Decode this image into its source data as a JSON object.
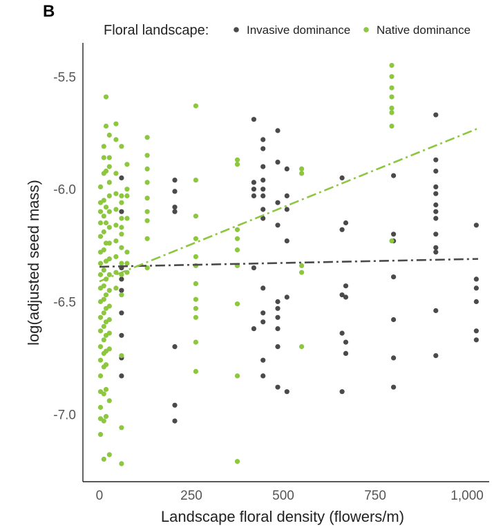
{
  "panel_label": "B",
  "legend": {
    "title": "Floral landscape:",
    "entries": [
      {
        "label": "Invasive dominance",
        "color": "#4a4a4a"
      },
      {
        "label": "Native dominance",
        "color": "#8dc63f"
      }
    ]
  },
  "chart_data": {
    "type": "scatter",
    "title": "",
    "xlabel": "Landscape floral density (flowers/m)",
    "ylabel": "log(adjusted seed mass)",
    "xlim": [
      -45,
      1060
    ],
    "ylim": [
      -7.3,
      -5.35
    ],
    "xticks": [
      0,
      250,
      500,
      750,
      1000
    ],
    "xtick_labels": [
      "0",
      "250",
      "500",
      "750",
      "1,000"
    ],
    "yticks": [
      -7.0,
      -6.5,
      -6.0,
      -5.5
    ],
    "ytick_labels": [
      "-7.0",
      "-6.5",
      "-6.0",
      "-5.5"
    ],
    "grid": false,
    "legend_position": "top",
    "series": [
      {
        "name": "Invasive dominance",
        "color": "#4a4a4a",
        "points": [
          [
            60,
            -5.95
          ],
          [
            60,
            -6.1
          ],
          [
            60,
            -6.35
          ],
          [
            60,
            -6.4
          ],
          [
            60,
            -6.45
          ],
          [
            60,
            -6.55
          ],
          [
            60,
            -6.65
          ],
          [
            60,
            -6.75
          ],
          [
            60,
            -6.83
          ],
          [
            205,
            -5.96
          ],
          [
            205,
            -6.01
          ],
          [
            205,
            -6.08
          ],
          [
            205,
            -6.1
          ],
          [
            205,
            -6.7
          ],
          [
            205,
            -6.96
          ],
          [
            205,
            -7.03
          ],
          [
            420,
            -5.69
          ],
          [
            420,
            -5.97
          ],
          [
            420,
            -6.0
          ],
          [
            420,
            -6.03
          ],
          [
            420,
            -6.35
          ],
          [
            420,
            -6.62
          ],
          [
            445,
            -5.78
          ],
          [
            445,
            -5.82
          ],
          [
            445,
            -5.9
          ],
          [
            445,
            -5.96
          ],
          [
            445,
            -6.0
          ],
          [
            445,
            -6.03
          ],
          [
            445,
            -6.09
          ],
          [
            445,
            -6.13
          ],
          [
            445,
            -6.44
          ],
          [
            445,
            -6.55
          ],
          [
            445,
            -6.59
          ],
          [
            445,
            -6.76
          ],
          [
            445,
            -6.83
          ],
          [
            485,
            -5.74
          ],
          [
            485,
            -5.88
          ],
          [
            485,
            -6.06
          ],
          [
            485,
            -6.16
          ],
          [
            485,
            -6.5
          ],
          [
            485,
            -6.53
          ],
          [
            485,
            -6.57
          ],
          [
            485,
            -6.62
          ],
          [
            485,
            -6.7
          ],
          [
            485,
            -6.88
          ],
          [
            510,
            -5.91
          ],
          [
            510,
            -6.03
          ],
          [
            510,
            -6.09
          ],
          [
            510,
            -6.23
          ],
          [
            510,
            -6.48
          ],
          [
            510,
            -6.9
          ],
          [
            660,
            -5.95
          ],
          [
            660,
            -6.18
          ],
          [
            660,
            -6.47
          ],
          [
            660,
            -6.64
          ],
          [
            660,
            -6.9
          ],
          [
            670,
            -6.15
          ],
          [
            670,
            -6.43
          ],
          [
            670,
            -6.48
          ],
          [
            670,
            -6.68
          ],
          [
            670,
            -6.73
          ],
          [
            800,
            -5.94
          ],
          [
            800,
            -6.2
          ],
          [
            800,
            -6.23
          ],
          [
            800,
            -6.39
          ],
          [
            800,
            -6.58
          ],
          [
            800,
            -6.75
          ],
          [
            800,
            -6.88
          ],
          [
            915,
            -5.67
          ],
          [
            915,
            -5.87
          ],
          [
            915,
            -5.92
          ],
          [
            915,
            -5.99
          ],
          [
            915,
            -6.02
          ],
          [
            915,
            -6.07
          ],
          [
            915,
            -6.1
          ],
          [
            915,
            -6.13
          ],
          [
            915,
            -6.2
          ],
          [
            915,
            -6.26
          ],
          [
            915,
            -6.28
          ],
          [
            915,
            -6.54
          ],
          [
            915,
            -6.74
          ],
          [
            1025,
            -6.16
          ],
          [
            1025,
            -6.4
          ],
          [
            1025,
            -6.44
          ],
          [
            1025,
            -6.5
          ],
          [
            1025,
            -6.63
          ],
          [
            1025,
            -6.67
          ]
        ],
        "trend": {
          "x": [
            0,
            1030
          ],
          "y": [
            -6.345,
            -6.31
          ]
        }
      },
      {
        "name": "Native dominance",
        "color": "#8dc63f",
        "points": [
          [
            3,
            -5.99
          ],
          [
            3,
            -6.06
          ],
          [
            3,
            -6.1
          ],
          [
            3,
            -6.15
          ],
          [
            3,
            -6.21
          ],
          [
            3,
            -6.28
          ],
          [
            3,
            -6.33
          ],
          [
            3,
            -6.38
          ],
          [
            3,
            -6.44
          ],
          [
            3,
            -6.5
          ],
          [
            3,
            -6.57
          ],
          [
            3,
            -6.63
          ],
          [
            3,
            -6.7
          ],
          [
            3,
            -6.76
          ],
          [
            3,
            -6.83
          ],
          [
            3,
            -6.9
          ],
          [
            3,
            -6.97
          ],
          [
            3,
            -7.02
          ],
          [
            3,
            -7.09
          ],
          [
            12,
            -5.81
          ],
          [
            12,
            -5.86
          ],
          [
            12,
            -5.93
          ],
          [
            12,
            -6.05
          ],
          [
            12,
            -6.12
          ],
          [
            12,
            -6.19
          ],
          [
            12,
            -6.27
          ],
          [
            12,
            -6.36
          ],
          [
            12,
            -6.43
          ],
          [
            12,
            -6.49
          ],
          [
            12,
            -6.55
          ],
          [
            12,
            -6.61
          ],
          [
            12,
            -6.67
          ],
          [
            12,
            -6.73
          ],
          [
            12,
            -6.79
          ],
          [
            12,
            -6.91
          ],
          [
            12,
            -7.03
          ],
          [
            12,
            -7.2
          ],
          [
            18,
            -5.59
          ],
          [
            18,
            -5.72
          ],
          [
            18,
            -5.92
          ],
          [
            18,
            -6.08
          ],
          [
            18,
            -6.15
          ],
          [
            18,
            -6.24
          ],
          [
            18,
            -6.32
          ],
          [
            18,
            -6.4
          ],
          [
            18,
            -6.47
          ],
          [
            18,
            -6.53
          ],
          [
            18,
            -6.59
          ],
          [
            18,
            -6.65
          ],
          [
            18,
            -6.72
          ],
          [
            18,
            -6.78
          ],
          [
            18,
            -6.89
          ],
          [
            18,
            -7.01
          ],
          [
            27,
            -5.76
          ],
          [
            27,
            -5.86
          ],
          [
            27,
            -5.9
          ],
          [
            27,
            -5.97
          ],
          [
            27,
            -6.03
          ],
          [
            27,
            -6.1
          ],
          [
            27,
            -6.17
          ],
          [
            27,
            -6.24
          ],
          [
            27,
            -6.31
          ],
          [
            27,
            -6.38
          ],
          [
            27,
            -6.45
          ],
          [
            27,
            -6.52
          ],
          [
            27,
            -6.58
          ],
          [
            27,
            -6.64
          ],
          [
            27,
            -6.71
          ],
          [
            27,
            -6.94
          ],
          [
            27,
            -7.18
          ],
          [
            45,
            -5.71
          ],
          [
            45,
            -5.78
          ],
          [
            45,
            -5.93
          ],
          [
            45,
            -6.02
          ],
          [
            45,
            -6.09
          ],
          [
            45,
            -6.16
          ],
          [
            45,
            -6.23
          ],
          [
            45,
            -6.3
          ],
          [
            45,
            -6.37
          ],
          [
            45,
            -6.44
          ],
          [
            60,
            -5.81
          ],
          [
            60,
            -6.03
          ],
          [
            60,
            -6.06
          ],
          [
            60,
            -6.13
          ],
          [
            60,
            -6.17
          ],
          [
            60,
            -6.2
          ],
          [
            60,
            -6.26
          ],
          [
            60,
            -6.33
          ],
          [
            60,
            -6.38
          ],
          [
            60,
            -6.47
          ],
          [
            60,
            -6.74
          ],
          [
            60,
            -7.06
          ],
          [
            60,
            -7.22
          ],
          [
            75,
            -5.89
          ],
          [
            75,
            -6.0
          ],
          [
            75,
            -6.03
          ],
          [
            75,
            -6.13
          ],
          [
            75,
            -6.28
          ],
          [
            75,
            -6.33
          ],
          [
            75,
            -6.37
          ],
          [
            130,
            -5.77
          ],
          [
            130,
            -5.85
          ],
          [
            130,
            -5.91
          ],
          [
            130,
            -5.97
          ],
          [
            130,
            -6.04
          ],
          [
            130,
            -6.1
          ],
          [
            130,
            -6.14
          ],
          [
            130,
            -6.22
          ],
          [
            130,
            -6.35
          ],
          [
            262,
            -5.63
          ],
          [
            262,
            -5.96
          ],
          [
            262,
            -6.12
          ],
          [
            262,
            -6.22
          ],
          [
            262,
            -6.3
          ],
          [
            262,
            -6.34
          ],
          [
            262,
            -6.42
          ],
          [
            262,
            -6.49
          ],
          [
            262,
            -6.53
          ],
          [
            262,
            -6.57
          ],
          [
            262,
            -6.68
          ],
          [
            262,
            -6.81
          ],
          [
            375,
            -5.87
          ],
          [
            375,
            -5.89
          ],
          [
            375,
            -6.18
          ],
          [
            375,
            -6.22
          ],
          [
            375,
            -6.27
          ],
          [
            375,
            -6.34
          ],
          [
            375,
            -6.51
          ],
          [
            375,
            -6.83
          ],
          [
            375,
            -7.21
          ],
          [
            550,
            -5.91
          ],
          [
            550,
            -5.93
          ],
          [
            550,
            -6.34
          ],
          [
            550,
            -6.37
          ],
          [
            550,
            -6.7
          ],
          [
            795,
            -5.45
          ],
          [
            795,
            -5.5
          ],
          [
            795,
            -5.55
          ],
          [
            795,
            -5.59
          ],
          [
            795,
            -5.64
          ],
          [
            795,
            -5.66
          ],
          [
            795,
            -5.72
          ],
          [
            795,
            -6.23
          ]
        ],
        "trend": {
          "x": [
            0,
            1030
          ],
          "y": [
            -6.41,
            -5.73
          ]
        }
      }
    ]
  }
}
